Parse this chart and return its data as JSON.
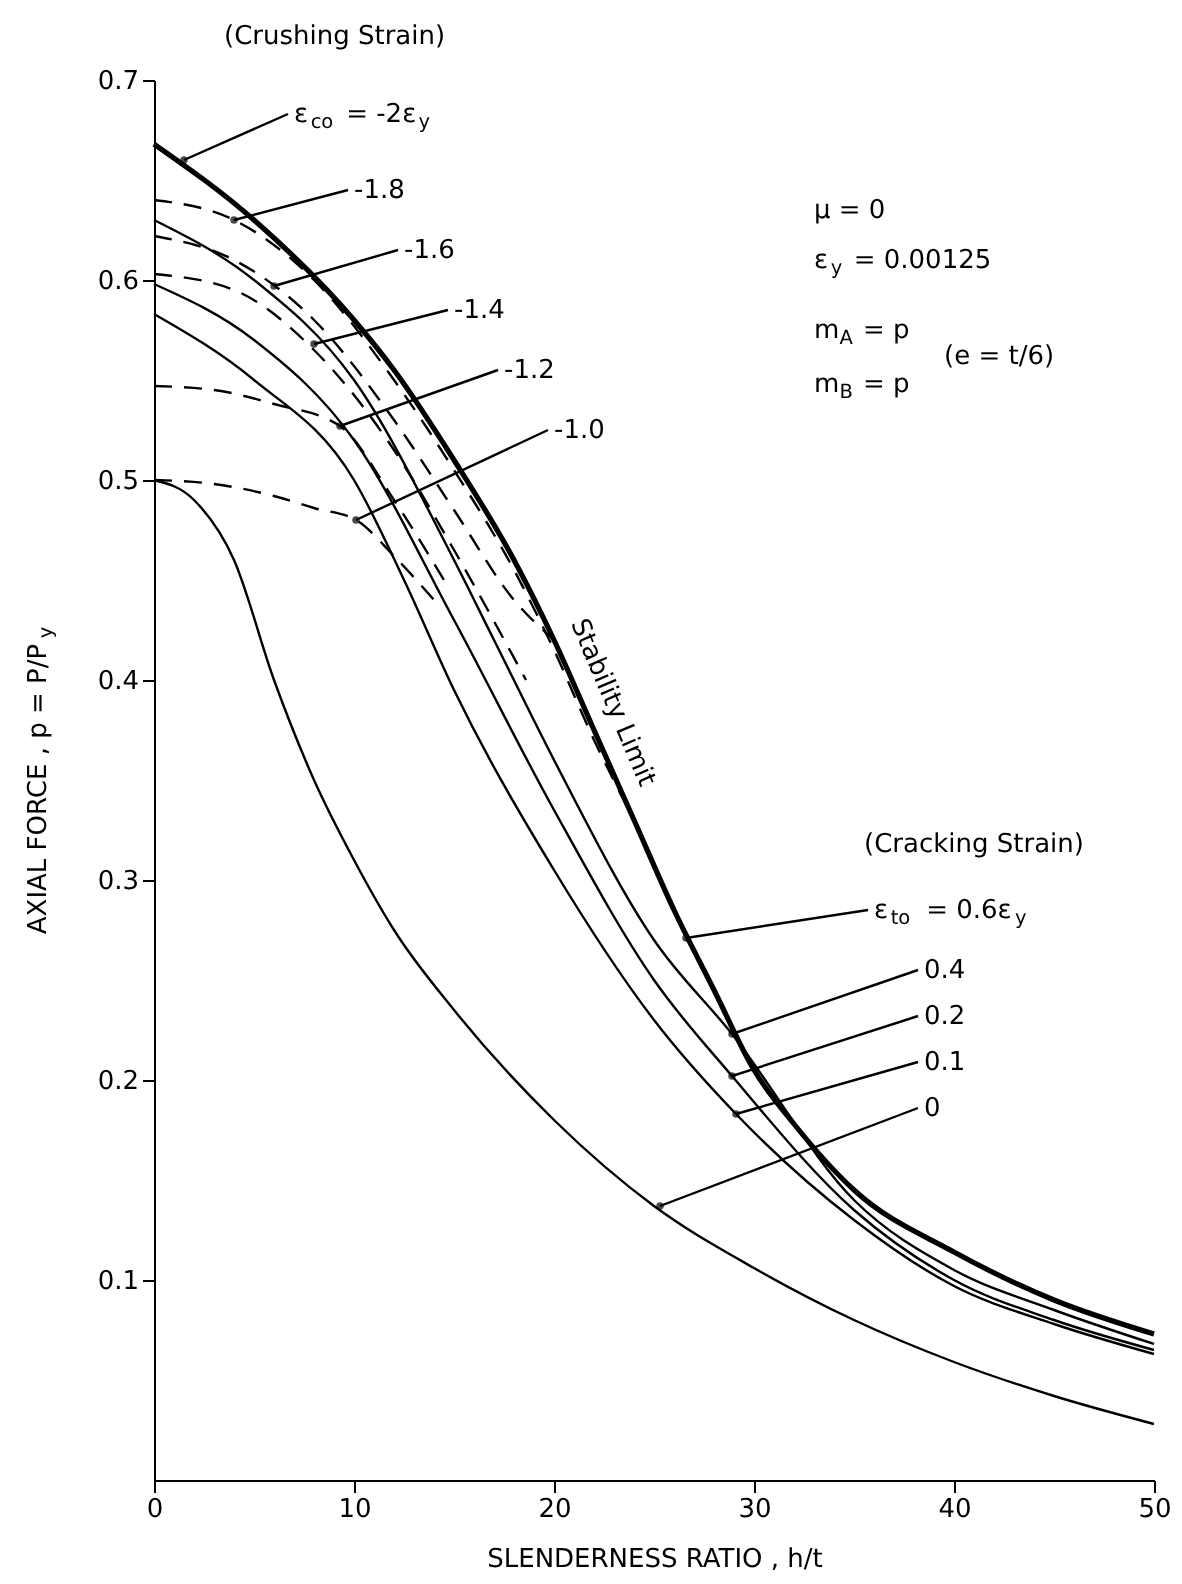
{
  "chart_data": {
    "type": "line",
    "xlabel": "SLENDERNESS RATIO , h/t",
    "ylabel": "AXIAL FORCE , p = P/P$_{y}$",
    "xlim": [
      0,
      50
    ],
    "ylim": [
      0,
      0.7
    ],
    "xticks": [
      0,
      10,
      20,
      30,
      40,
      50
    ],
    "yticks": [
      {
        "value": 0.1,
        "label": "0.1"
      },
      {
        "value": 0.2,
        "label": "0.2"
      },
      {
        "value": 0.3,
        "label": "0.3"
      },
      {
        "value": 0.4,
        "label": "0.4"
      },
      {
        "value": 0.5,
        "label": "0.5"
      },
      {
        "value": 0.6,
        "label": "0.6"
      },
      {
        "value": 0.7,
        "label": "0.7"
      }
    ],
    "grid": false,
    "marker": "none",
    "series": [
      {
        "color": "#000000",
        "line_style": "solid",
        "x": [
          0,
          5,
          10,
          12,
          15,
          18,
          20,
          22,
          24,
          26,
          28,
          30,
          32,
          35,
          40,
          45,
          50
        ],
        "values": [
          0.668,
          0.63,
          0.58,
          0.555,
          0.51,
          0.46,
          0.42,
          0.375,
          0.33,
          0.285,
          0.245,
          0.205,
          0.178,
          0.145,
          0.114,
          0.09,
          0.073
        ]
      },
      {
        "color": "#000000",
        "line_style": "dashed",
        "x": [
          0,
          4,
          8,
          12,
          15,
          18,
          20,
          22,
          24
        ],
        "values": [
          0.64,
          0.63,
          0.6,
          0.55,
          0.505,
          0.455,
          0.415,
          0.37,
          0.33
        ]
      },
      {
        "color": "#000000",
        "line_style": "dashed",
        "x": [
          0,
          4,
          8,
          12,
          15,
          18,
          20
        ],
        "values": [
          0.622,
          0.61,
          0.58,
          0.53,
          0.485,
          0.44,
          0.42
        ]
      },
      {
        "color": "#000000",
        "line_style": "dashed",
        "x": [
          0,
          4,
          8,
          12,
          15,
          18.6
        ],
        "values": [
          0.603,
          0.595,
          0.565,
          0.515,
          0.465,
          0.4
        ]
      },
      {
        "color": "#000000",
        "line_style": "dashed",
        "x": [
          0,
          3,
          6,
          9.3,
          12,
          14.5
        ],
        "values": [
          0.547,
          0.545,
          0.538,
          0.527,
          0.49,
          0.45
        ]
      },
      {
        "color": "#000000",
        "line_style": "dashed",
        "x": [
          0,
          3,
          6,
          8,
          10.1,
          12,
          14
        ],
        "values": [
          0.5,
          0.498,
          0.492,
          0.486,
          0.48,
          0.462,
          0.44
        ]
      },
      {
        "color": "#000000",
        "line_style": "solid",
        "x": [
          0,
          5,
          10,
          15,
          17,
          20,
          25,
          28.9,
          35,
          40,
          45,
          50
        ],
        "values": [
          0.63,
          0.6,
          0.55,
          0.46,
          0.42,
          0.36,
          0.27,
          0.223,
          0.14,
          0.105,
          0.085,
          0.068
        ]
      },
      {
        "color": "#000000",
        "line_style": "solid",
        "x": [
          0,
          5,
          10,
          15,
          20,
          25,
          28.9,
          35,
          40,
          45,
          50
        ],
        "values": [
          0.598,
          0.57,
          0.52,
          0.43,
          0.335,
          0.25,
          0.202,
          0.135,
          0.1,
          0.08,
          0.065
        ]
      },
      {
        "color": "#000000",
        "line_style": "solid",
        "x": [
          0,
          5,
          10,
          12.5,
          15,
          20,
          25,
          29.1,
          35,
          40,
          45,
          50
        ],
        "values": [
          0.583,
          0.55,
          0.5,
          0.45,
          0.395,
          0.305,
          0.23,
          0.183,
          0.13,
          0.097,
          0.078,
          0.063
        ]
      },
      {
        "color": "#000000",
        "line_style": "solid",
        "x": [
          0,
          2,
          4,
          6,
          8,
          10,
          12,
          15,
          20,
          25,
          30,
          35,
          40,
          45,
          50
        ],
        "values": [
          0.5,
          0.49,
          0.46,
          0.4,
          0.35,
          0.31,
          0.275,
          0.235,
          0.18,
          0.137,
          0.106,
          0.08,
          0.059,
          0.042,
          0.028
        ]
      }
    ],
    "annotations": [
      "(Crushing Strain)",
      {
        "text": "ε$_{co}$ = -2ε$_{y}$",
        "x": 1.5,
        "y": 0.66
      },
      {
        "text": "-1.8",
        "x": 4,
        "y": 0.63
      },
      {
        "text": "-1.6",
        "x": 6,
        "y": 0.597
      },
      {
        "text": "-1.4",
        "x": 8,
        "y": 0.568
      },
      {
        "text": "-1.2",
        "x": 9.3,
        "y": 0.527
      },
      {
        "text": "-1.0",
        "x": 10.1,
        "y": 0.48
      },
      "μ = 0",
      "ε$_{y}$ = 0.00125",
      "m$_{A}$ = p",
      "m$_{B}$ = p",
      "(e = t/6)",
      "Stability Limit",
      "(Cracking Strain)",
      {
        "text": "ε$_{to}$ = 0.6ε$_{y}$",
        "x": 26.6,
        "y": 0.271
      },
      {
        "text": "0.4",
        "x": 28.9,
        "y": 0.223
      },
      {
        "text": "0.2",
        "x": 28.9,
        "y": 0.202
      },
      {
        "text": "0.1",
        "x": 29.1,
        "y": 0.183
      },
      {
        "text": "0",
        "x": 25.3,
        "y": 0.137
      }
    ]
  }
}
